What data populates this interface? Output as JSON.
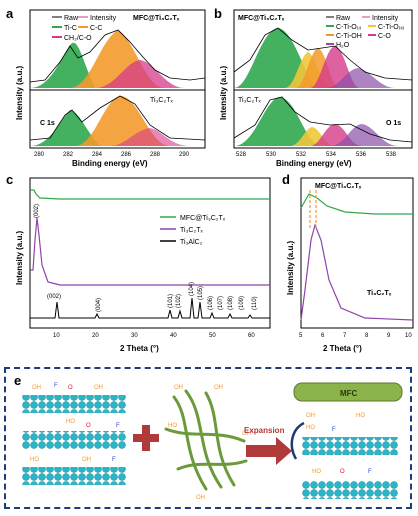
{
  "panel_a": {
    "letter": "a",
    "top_sample": "MFC@Ti₃C₂Tₓ",
    "bottom_sample": "Ti₃C₂Tₓ",
    "core_level": "C 1s",
    "legend": [
      "Raw",
      "Intensity",
      "Ti-C",
      "C-C",
      "CH₂/C-O"
    ],
    "xlabel": "Binding energy (eV)",
    "ylabel": "Intensity (a.u.)",
    "xticks": [
      "280",
      "282",
      "284",
      "286",
      "288",
      "290"
    ]
  },
  "panel_b": {
    "letter": "b",
    "top_sample": "MFC@Ti₃C₂Tₓ",
    "bottom_sample": "Ti₃C₂Tₓ",
    "core_level": "O 1s",
    "legend": [
      "Raw",
      "Intensity",
      "C-Ti-O₍ᵢ₎",
      "C-Ti-O₍ᵢᵢ₎",
      "C-Ti-OH",
      "C-O",
      "H₂O"
    ],
    "xlabel": "Binding energy (eV)",
    "ylabel": "Intensity (a.u.)",
    "xticks": [
      "528",
      "530",
      "532",
      "534",
      "536",
      "538"
    ]
  },
  "panel_c": {
    "letter": "c",
    "legend": [
      "MFC@Ti₃C₂Tₓ",
      "Ti₃C₂Tₓ",
      "Ti₃AlC₂"
    ],
    "peak_label_top": "(002)",
    "peaks": [
      "(002)",
      "(004)",
      "(101)",
      "(102)",
      "(104)",
      "(105)",
      "(106)",
      "(107)",
      "(108)",
      "(109)",
      "(110)"
    ],
    "xlabel": "2 Theta (°)",
    "ylabel": "Intensity (a.u.)",
    "xticks": [
      "10",
      "20",
      "30",
      "40",
      "50",
      "60"
    ]
  },
  "panel_d": {
    "letter": "d",
    "top_sample": "MFC@Ti₃C₂Tₓ",
    "bottom_sample": "Ti₃C₂Tₓ",
    "xlabel": "2 Theta (°)",
    "ylabel": "Intensity (a.u.)",
    "xticks": [
      "5",
      "6",
      "7",
      "8",
      "9",
      "10"
    ]
  },
  "panel_e": {
    "letter": "e",
    "mfc_label": "MFC",
    "expansion_label": "Expansion",
    "oh": "OH",
    "ho": "HO",
    "o": "O",
    "f": "F"
  },
  "colors": {
    "green": "#2fa84f",
    "orange": "#f39a2b",
    "magenta": "#d63a8a",
    "purple": "#8a4fa8",
    "xrd_green": "#33a84a",
    "xrd_purple": "#8e44ad",
    "border": "#203a7a"
  }
}
